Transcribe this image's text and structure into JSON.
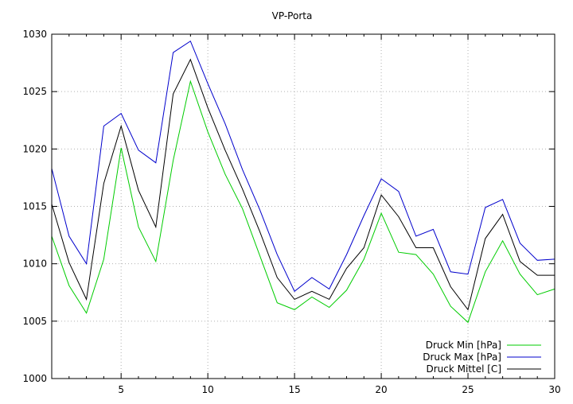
{
  "chart_data": {
    "type": "line",
    "title": "VP-Porta",
    "xlabel": "",
    "ylabel": "",
    "xlim": [
      1,
      30
    ],
    "ylim": [
      1000,
      1030
    ],
    "x_ticks": [
      5,
      10,
      15,
      20,
      25,
      30
    ],
    "y_ticks": [
      1000,
      1005,
      1010,
      1015,
      1020,
      1025,
      1030
    ],
    "grid": true,
    "legend_position": "bottom-right",
    "x": [
      1,
      2,
      3,
      4,
      5,
      6,
      7,
      8,
      9,
      10,
      11,
      12,
      13,
      14,
      15,
      16,
      17,
      18,
      19,
      20,
      21,
      22,
      23,
      24,
      25,
      26,
      27,
      28,
      29,
      30
    ],
    "series": [
      {
        "name": "Druck Min [hPa]",
        "color": "#00cc00",
        "values": [
          1012.4,
          1008.1,
          1005.7,
          1010.4,
          1020.1,
          1013.2,
          1010.2,
          1019.0,
          1025.9,
          1021.5,
          1017.8,
          1014.8,
          1010.7,
          1006.6,
          1006.0,
          1007.1,
          1006.2,
          1007.7,
          1010.4,
          1014.4,
          1011.0,
          1010.8,
          1009.1,
          1006.3,
          1004.9,
          1009.3,
          1012.0,
          1009.1,
          1007.3,
          1007.8
        ]
      },
      {
        "name": "Druck Max [hPa]",
        "color": "#0000cc",
        "values": [
          1018.3,
          1012.4,
          1010.0,
          1022.0,
          1023.1,
          1019.9,
          1018.8,
          1028.4,
          1029.4,
          1025.7,
          1022.2,
          1018.2,
          1014.7,
          1010.8,
          1007.6,
          1008.8,
          1007.8,
          1010.8,
          1014.2,
          1017.4,
          1016.3,
          1012.4,
          1013.0,
          1009.3,
          1009.1,
          1014.9,
          1015.6,
          1011.8,
          1010.3,
          1010.4
        ]
      },
      {
        "name": "Druck Mittel [C]",
        "color": "#000000",
        "values": [
          1015.2,
          1010.1,
          1006.9,
          1017.0,
          1022.0,
          1016.4,
          1013.2,
          1024.8,
          1027.8,
          1023.6,
          1019.9,
          1016.5,
          1012.8,
          1008.8,
          1006.9,
          1007.6,
          1006.9,
          1009.6,
          1011.4,
          1016.0,
          1014.1,
          1011.4,
          1011.4,
          1008.0,
          1006.0,
          1012.2,
          1014.3,
          1010.2,
          1009.0,
          1009.0
        ]
      }
    ]
  }
}
